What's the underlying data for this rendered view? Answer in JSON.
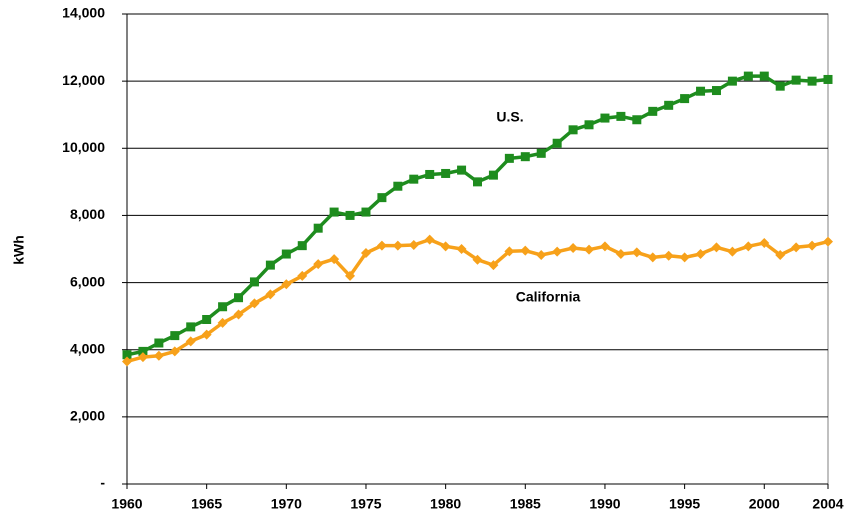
{
  "chart_data": {
    "type": "line",
    "y_label": "kWh",
    "x": [
      1960,
      1961,
      1962,
      1963,
      1964,
      1965,
      1966,
      1967,
      1968,
      1969,
      1970,
      1971,
      1972,
      1973,
      1974,
      1975,
      1976,
      1977,
      1978,
      1979,
      1980,
      1981,
      1982,
      1983,
      1984,
      1985,
      1986,
      1987,
      1988,
      1989,
      1990,
      1991,
      1992,
      1993,
      1994,
      1995,
      1996,
      1997,
      1998,
      1999,
      2000,
      2001,
      2002,
      2003,
      2004
    ],
    "series": [
      {
        "name": "U.S.",
        "color": "#1e8c1e",
        "marker": "square",
        "values": [
          3850,
          3950,
          4200,
          4420,
          4680,
          4900,
          5280,
          5550,
          6020,
          6520,
          6850,
          7100,
          7620,
          8100,
          8000,
          8100,
          8530,
          8870,
          9080,
          9220,
          9250,
          9350,
          9000,
          9200,
          9700,
          9750,
          9850,
          10150,
          10550,
          10700,
          10900,
          10950,
          10850,
          11100,
          11280,
          11480,
          11700,
          11720,
          12000,
          12150,
          12150,
          11850,
          12030,
          12000,
          12050
        ]
      },
      {
        "name": "California",
        "color": "#f7a11a",
        "marker": "diamond",
        "values": [
          3650,
          3780,
          3820,
          3950,
          4250,
          4450,
          4800,
          5050,
          5380,
          5650,
          5950,
          6200,
          6550,
          6700,
          6200,
          6880,
          7100,
          7100,
          7120,
          7280,
          7080,
          7000,
          6680,
          6520,
          6930,
          6950,
          6820,
          6920,
          7030,
          6980,
          7080,
          6850,
          6900,
          6750,
          6800,
          6750,
          6850,
          7050,
          6920,
          7080,
          7180,
          6820,
          7050,
          7100,
          7220
        ]
      }
    ],
    "xlim": [
      1960,
      2004
    ],
    "xticks": [
      1960,
      1965,
      1970,
      1975,
      1980,
      1985,
      1990,
      1995,
      2000,
      2004
    ],
    "ylim": [
      0,
      14000
    ],
    "yticks": [
      {
        "value": 0,
        "label": "-"
      },
      {
        "value": 2000,
        "label": "2,000"
      },
      {
        "value": 4000,
        "label": "4,000"
      },
      {
        "value": 6000,
        "label": "6,000"
      },
      {
        "value": 8000,
        "label": "8,000"
      },
      {
        "value": 10000,
        "label": "10,000"
      },
      {
        "value": 12000,
        "label": "12,000"
      },
      {
        "value": 14000,
        "label": "14,000"
      }
    ],
    "grid": true
  }
}
